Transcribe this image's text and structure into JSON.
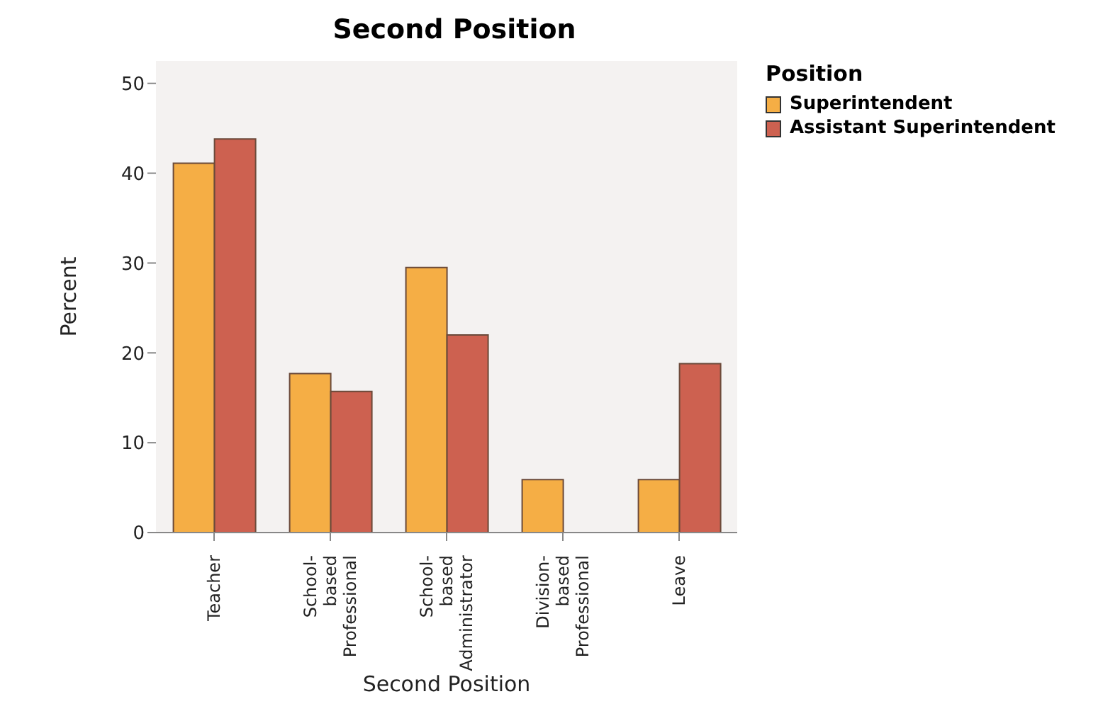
{
  "chart_data": {
    "type": "bar",
    "title": "Second Position",
    "xlabel": "Second Position",
    "ylabel": "Percent",
    "legend_title": "Position",
    "categories": [
      "Teacher",
      "School-based Professional",
      "School-based Administrator",
      "Division-based Professional",
      "Leave"
    ],
    "series": [
      {
        "name": "Superintendent",
        "color": "#f5ae45",
        "values": [
          41.1,
          17.7,
          29.5,
          5.9,
          5.9
        ]
      },
      {
        "name": "Assistant Superintendent",
        "color": "#cd6150",
        "values": [
          43.8,
          15.7,
          22.0,
          0,
          18.8
        ]
      }
    ],
    "ylim": [
      0,
      52.5
    ],
    "yticks": [
      0,
      10,
      20,
      30,
      40,
      50
    ],
    "legend": "top right"
  }
}
